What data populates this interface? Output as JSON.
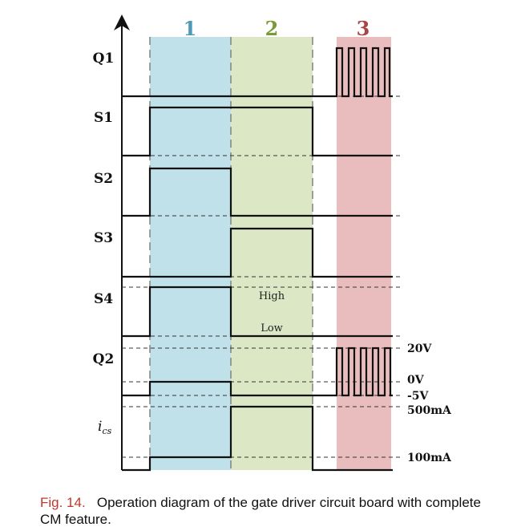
{
  "phases": [
    {
      "label": "1",
      "color": "#4aa0c0",
      "fill": "#c1e1ea"
    },
    {
      "label": "2",
      "color": "#7aa030",
      "fill": "#dce7c5"
    },
    {
      "label": "3",
      "color": "#a84040",
      "fill": "#e9bdbd"
    }
  ],
  "signals": {
    "q1": "Q1",
    "s1": "S1",
    "s2": "S2",
    "s3": "S3",
    "s4": "S4",
    "q2": "Q2",
    "ics": "i",
    "ics_sub": "cs"
  },
  "annotations": {
    "high": "High",
    "low": "Low",
    "v20": "20V",
    "v0": "0V",
    "vm5": "-5V",
    "ma500": "500mA",
    "ma100": "100mA"
  },
  "caption": {
    "fig": "Fig. 14.",
    "text": "Operation diagram of the gate driver circuit board with complete CM feature."
  }
}
